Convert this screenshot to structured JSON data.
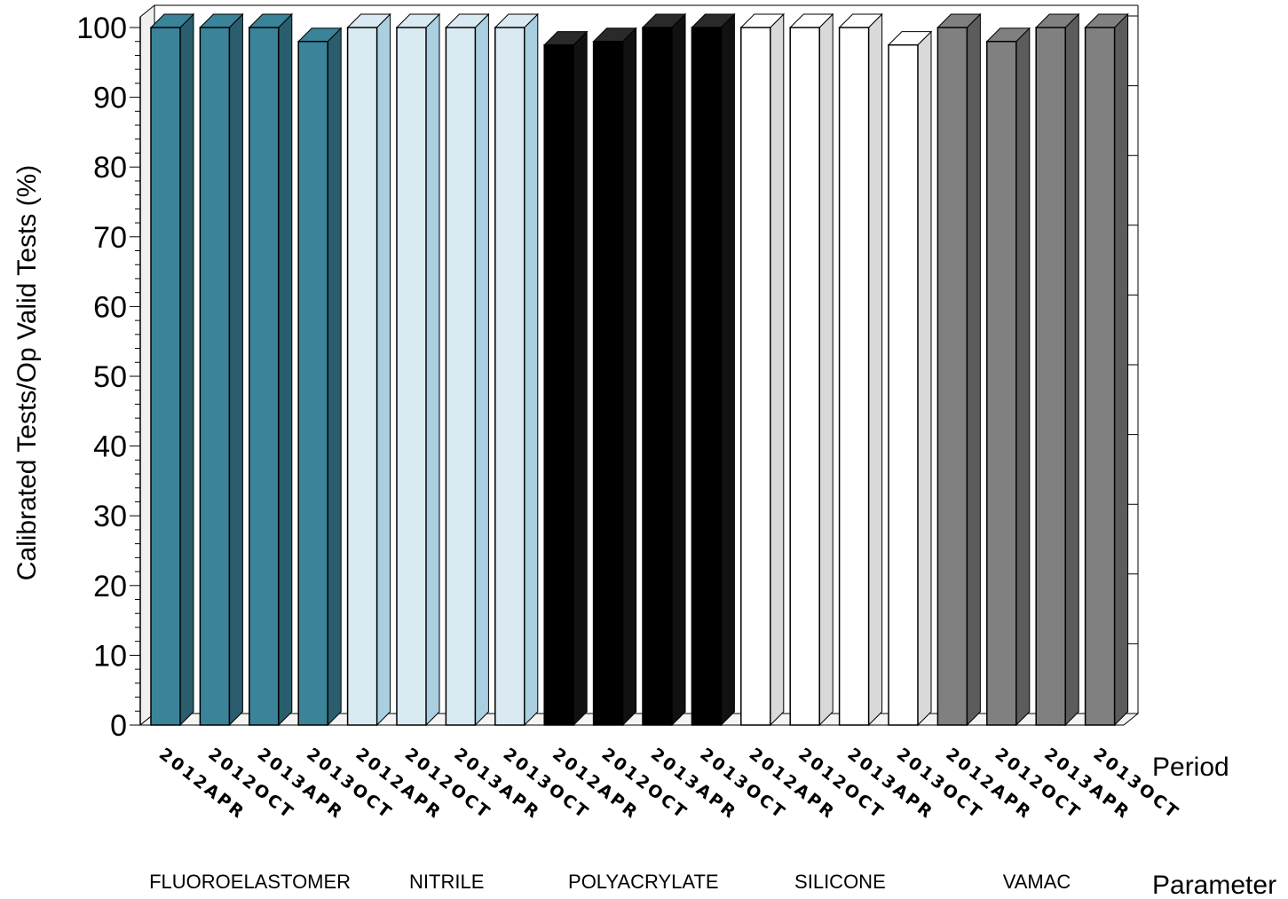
{
  "chart_data": {
    "type": "bar",
    "ylabel": "Calibrated Tests/Op Valid Tests (%)",
    "ylim": [
      0,
      100
    ],
    "yticks": [
      "0",
      "10",
      "20",
      "30",
      "40",
      "50",
      "60",
      "70",
      "80",
      "90",
      "100"
    ],
    "period_axis_label": "Period",
    "parameter_axis_label": "Parameter",
    "periods": [
      "2012APR",
      "2012OCT",
      "2013APR",
      "2013OCT"
    ],
    "series": [
      {
        "name": "FLUOROELASTOMER",
        "color": "#3a8399",
        "values": [
          100,
          100,
          100,
          98
        ]
      },
      {
        "name": "NITRILE",
        "color": "#daeaf2",
        "values": [
          100,
          100,
          100,
          100
        ]
      },
      {
        "name": "POLYACRYLATE",
        "color": "#000000",
        "values": [
          97.5,
          98,
          100,
          100
        ]
      },
      {
        "name": "SILICONE",
        "color": "#ffffff",
        "values": [
          100,
          100,
          100,
          97.5
        ]
      },
      {
        "name": "VAMAC",
        "color": "#808080",
        "values": [
          100,
          98,
          100,
          100
        ]
      }
    ],
    "grid": false,
    "style": "3d-bars"
  }
}
